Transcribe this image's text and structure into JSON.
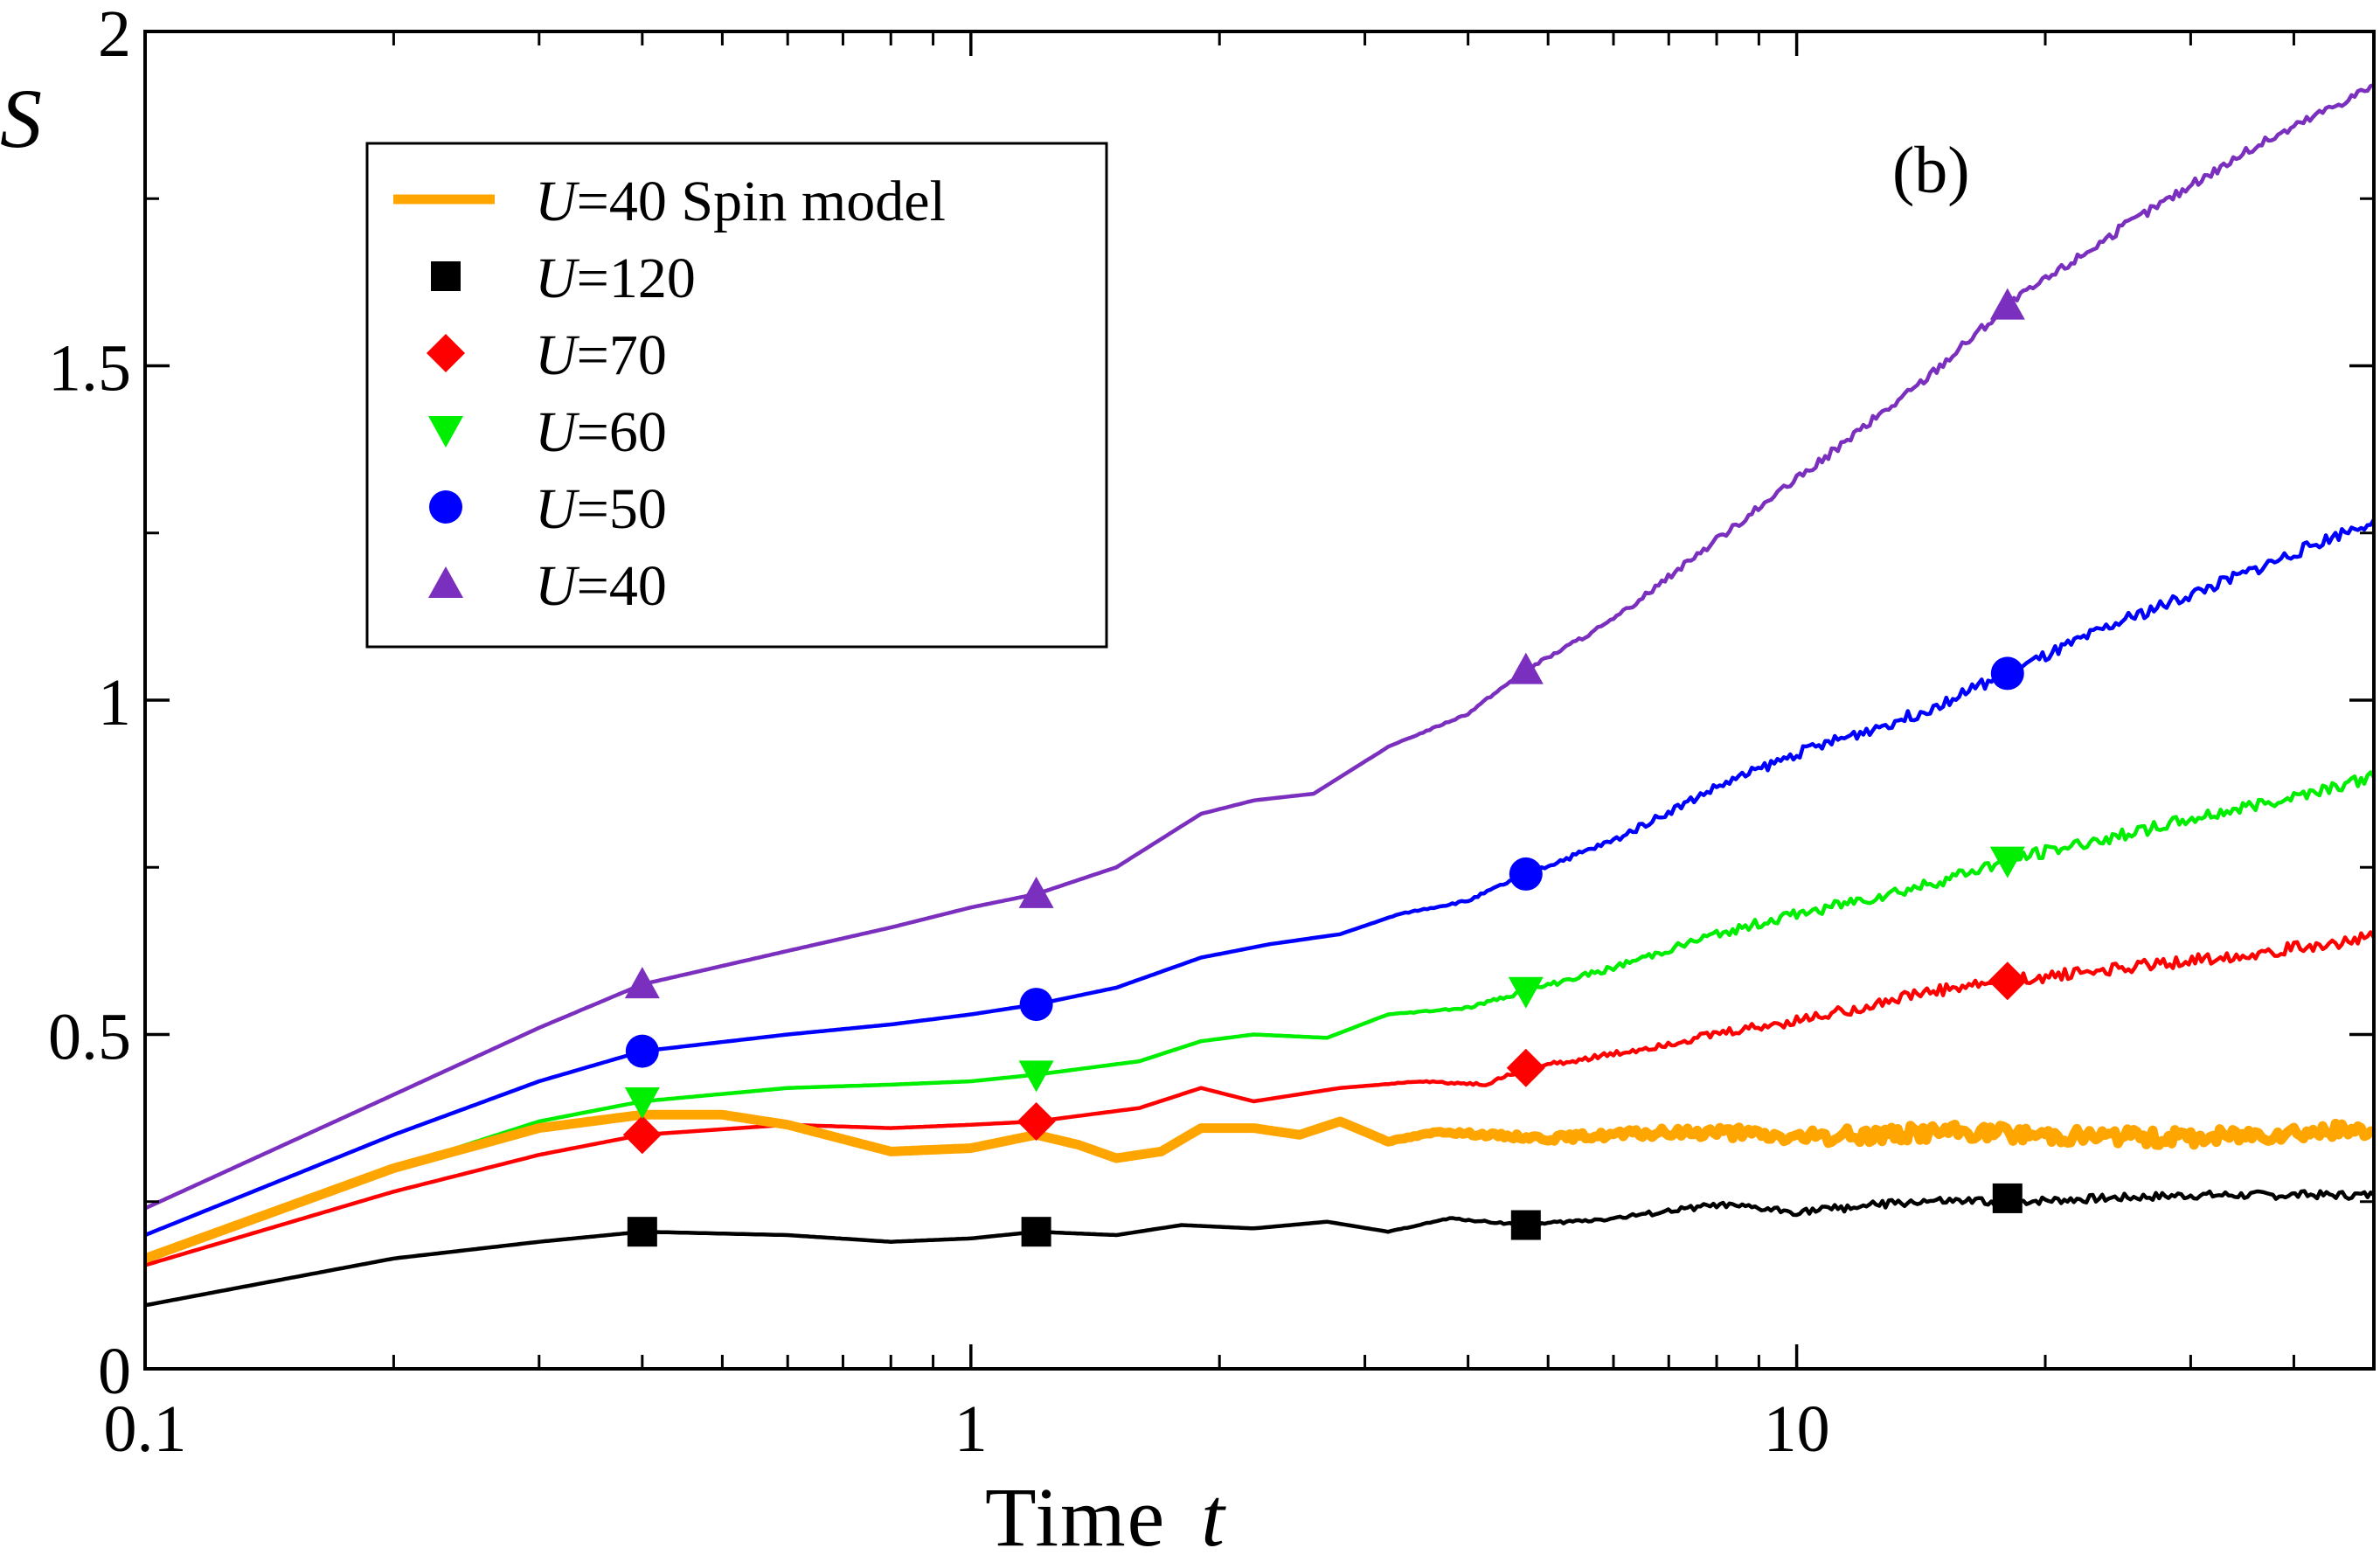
{
  "chart_data": {
    "type": "line",
    "panel_label": "(b)",
    "xlabel_text": "Time",
    "xlabel_var": "t",
    "ylabel": "S",
    "xscale": "log",
    "xlim": [
      0.1,
      50
    ],
    "ylim": [
      0,
      2
    ],
    "x_ticks": [
      {
        "value": 0.1,
        "label": "0.1"
      },
      {
        "value": 1,
        "label": "1"
      },
      {
        "value": 10,
        "label": "10"
      }
    ],
    "y_ticks": [
      {
        "value": 0,
        "label": "0"
      },
      {
        "value": 0.5,
        "label": "0.5"
      },
      {
        "value": 1,
        "label": "1"
      },
      {
        "value": 1.5,
        "label": "1.5"
      },
      {
        "value": 2,
        "label": "2"
      }
    ],
    "legend_position": "top-left",
    "series": [
      {
        "id": "spin",
        "var": "U",
        "label": "=40 Spin model",
        "color": "#ffa500",
        "marker": "none",
        "thick": true,
        "points": [
          [
            0.1,
            0.165
          ],
          [
            0.2,
            0.3
          ],
          [
            0.3,
            0.36
          ],
          [
            0.4,
            0.38
          ],
          [
            0.5,
            0.38
          ],
          [
            0.6,
            0.365
          ],
          [
            0.8,
            0.325
          ],
          [
            1.0,
            0.33
          ],
          [
            1.2,
            0.35
          ],
          [
            1.35,
            0.335
          ],
          [
            1.5,
            0.315
          ],
          [
            1.7,
            0.325
          ],
          [
            1.9,
            0.36
          ],
          [
            2.2,
            0.36
          ],
          [
            2.5,
            0.35
          ],
          [
            2.8,
            0.37
          ],
          [
            3.2,
            0.34
          ],
          [
            3.7,
            0.355
          ],
          [
            4.2,
            0.35
          ],
          [
            5,
            0.345
          ],
          [
            6,
            0.35
          ],
          [
            8,
            0.355
          ],
          [
            10,
            0.345
          ],
          [
            15,
            0.355
          ],
          [
            20,
            0.35
          ],
          [
            30,
            0.345
          ],
          [
            40,
            0.355
          ],
          [
            50,
            0.355
          ]
        ]
      },
      {
        "id": "u120",
        "var": "U",
        "label": "=120",
        "color": "#000000",
        "marker": "square",
        "thick": false,
        "points": [
          [
            0.1,
            0.095
          ],
          [
            0.2,
            0.165
          ],
          [
            0.3,
            0.19
          ],
          [
            0.4,
            0.205
          ],
          [
            0.6,
            0.2
          ],
          [
            0.8,
            0.19
          ],
          [
            1.0,
            0.195
          ],
          [
            1.2,
            0.205
          ],
          [
            1.5,
            0.2
          ],
          [
            1.8,
            0.215
          ],
          [
            2.2,
            0.21
          ],
          [
            2.7,
            0.22
          ],
          [
            3.2,
            0.205
          ],
          [
            3.8,
            0.225
          ],
          [
            4.7,
            0.215
          ],
          [
            6,
            0.225
          ],
          [
            8,
            0.245
          ],
          [
            10,
            0.235
          ],
          [
            14,
            0.25
          ],
          [
            18,
            0.25
          ],
          [
            30,
            0.26
          ],
          [
            50,
            0.26
          ]
        ],
        "markers": [
          [
            0.4,
            0.205
          ],
          [
            1.2,
            0.205
          ],
          [
            4.7,
            0.215
          ],
          [
            18,
            0.255
          ]
        ]
      },
      {
        "id": "u70",
        "var": "U",
        "label": "=70",
        "color": "#ff0000",
        "marker": "diamond",
        "thick": false,
        "points": [
          [
            0.1,
            0.155
          ],
          [
            0.2,
            0.265
          ],
          [
            0.3,
            0.32
          ],
          [
            0.4,
            0.35
          ],
          [
            0.6,
            0.365
          ],
          [
            0.8,
            0.36
          ],
          [
            1.0,
            0.365
          ],
          [
            1.2,
            0.37
          ],
          [
            1.6,
            0.39
          ],
          [
            1.9,
            0.42
          ],
          [
            2.2,
            0.4
          ],
          [
            2.8,
            0.42
          ],
          [
            3.5,
            0.43
          ],
          [
            4.2,
            0.425
          ],
          [
            4.7,
            0.45
          ],
          [
            6,
            0.47
          ],
          [
            8,
            0.5
          ],
          [
            10,
            0.52
          ],
          [
            14,
            0.56
          ],
          [
            18,
            0.58
          ],
          [
            25,
            0.6
          ],
          [
            35,
            0.62
          ],
          [
            50,
            0.645
          ]
        ],
        "markers": [
          [
            0.4,
            0.35
          ],
          [
            1.2,
            0.37
          ],
          [
            4.7,
            0.45
          ],
          [
            18,
            0.58
          ]
        ]
      },
      {
        "id": "u60",
        "var": "U",
        "label": "=60",
        "color": "#00ee00",
        "marker": "triangle-down",
        "thick": false,
        "points": [
          [
            0.1,
            0.165
          ],
          [
            0.2,
            0.3
          ],
          [
            0.3,
            0.37
          ],
          [
            0.4,
            0.4
          ],
          [
            0.6,
            0.42
          ],
          [
            0.8,
            0.425
          ],
          [
            1.0,
            0.43
          ],
          [
            1.2,
            0.44
          ],
          [
            1.6,
            0.46
          ],
          [
            1.9,
            0.49
          ],
          [
            2.2,
            0.5
          ],
          [
            2.7,
            0.495
          ],
          [
            3.2,
            0.53
          ],
          [
            4.0,
            0.54
          ],
          [
            4.7,
            0.565
          ],
          [
            6,
            0.6
          ],
          [
            8,
            0.65
          ],
          [
            10,
            0.68
          ],
          [
            14,
            0.72
          ],
          [
            18,
            0.76
          ],
          [
            25,
            0.8
          ],
          [
            35,
            0.84
          ],
          [
            50,
            0.885
          ]
        ],
        "markers": [
          [
            0.4,
            0.4
          ],
          [
            1.2,
            0.44
          ],
          [
            4.7,
            0.565
          ],
          [
            18,
            0.76
          ]
        ]
      },
      {
        "id": "u50",
        "var": "U",
        "label": "=50",
        "color": "#0000ff",
        "marker": "circle",
        "thick": false,
        "points": [
          [
            0.1,
            0.2
          ],
          [
            0.2,
            0.35
          ],
          [
            0.3,
            0.43
          ],
          [
            0.4,
            0.475
          ],
          [
            0.6,
            0.5
          ],
          [
            0.8,
            0.515
          ],
          [
            1.0,
            0.53
          ],
          [
            1.2,
            0.545
          ],
          [
            1.5,
            0.57
          ],
          [
            1.9,
            0.615
          ],
          [
            2.3,
            0.635
          ],
          [
            2.8,
            0.65
          ],
          [
            3.3,
            0.68
          ],
          [
            4.0,
            0.7
          ],
          [
            4.7,
            0.74
          ],
          [
            6,
            0.79
          ],
          [
            8,
            0.87
          ],
          [
            10,
            0.92
          ],
          [
            14,
            0.98
          ],
          [
            18,
            1.04
          ],
          [
            25,
            1.12
          ],
          [
            35,
            1.19
          ],
          [
            50,
            1.27
          ]
        ],
        "markers": [
          [
            0.4,
            0.475
          ],
          [
            1.2,
            0.545
          ],
          [
            4.7,
            0.74
          ],
          [
            18,
            1.04
          ]
        ]
      },
      {
        "id": "u40",
        "var": "U",
        "label": "=40",
        "color": "#7b2fbe",
        "marker": "triangle-up",
        "thick": false,
        "points": [
          [
            0.1,
            0.24
          ],
          [
            0.2,
            0.41
          ],
          [
            0.3,
            0.51
          ],
          [
            0.4,
            0.575
          ],
          [
            0.6,
            0.625
          ],
          [
            0.8,
            0.66
          ],
          [
            1.0,
            0.69
          ],
          [
            1.2,
            0.71
          ],
          [
            1.5,
            0.75
          ],
          [
            1.9,
            0.83
          ],
          [
            2.2,
            0.85
          ],
          [
            2.6,
            0.86
          ],
          [
            3.2,
            0.93
          ],
          [
            4.0,
            0.98
          ],
          [
            4.7,
            1.045
          ],
          [
            6,
            1.12
          ],
          [
            8,
            1.24
          ],
          [
            10,
            1.33
          ],
          [
            14,
            1.47
          ],
          [
            18,
            1.59
          ],
          [
            25,
            1.71
          ],
          [
            35,
            1.82
          ],
          [
            50,
            1.92
          ]
        ],
        "markers": [
          [
            0.4,
            0.575
          ],
          [
            1.2,
            0.71
          ],
          [
            4.7,
            1.045
          ],
          [
            18,
            1.59
          ]
        ]
      }
    ]
  }
}
